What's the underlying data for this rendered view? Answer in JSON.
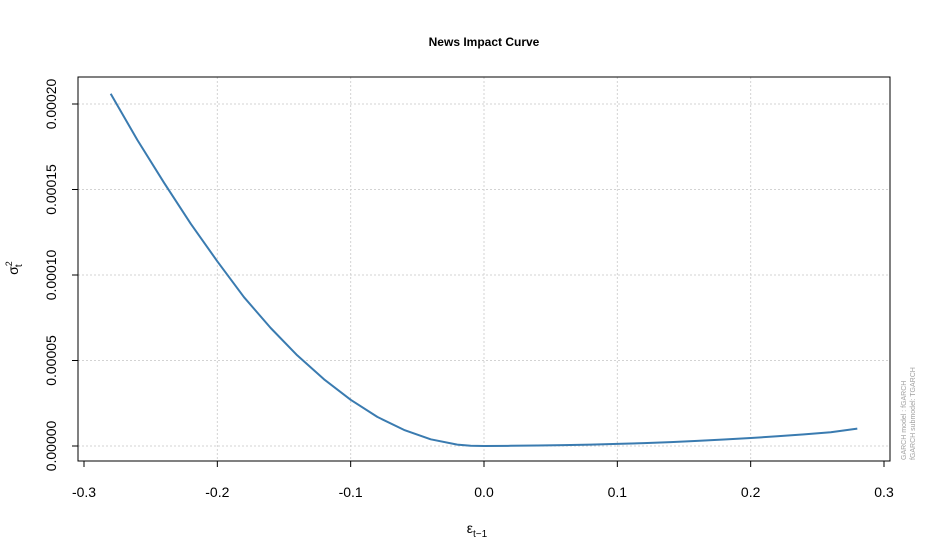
{
  "chart_data": {
    "type": "line",
    "title": "News Impact Curve",
    "xlabel": {
      "base": "ε",
      "sub": "t−1"
    },
    "ylabel": {
      "base": "σ",
      "sup": "2",
      "sub": "t"
    },
    "xlim": [
      -0.3,
      0.3
    ],
    "ylim": [
      0.0,
      0.0002
    ],
    "x_ticks": [
      -0.3,
      -0.2,
      -0.1,
      0.0,
      0.1,
      0.2,
      0.3
    ],
    "x_tick_labels": [
      "-0.3",
      "-0.2",
      "-0.1",
      "0.0",
      "0.1",
      "0.2",
      "0.3"
    ],
    "y_ticks": [
      0.0,
      5e-05,
      0.0001,
      0.00015,
      0.0002
    ],
    "y_tick_labels": [
      "0.00000",
      "0.00005",
      "0.00010",
      "0.00015",
      "0.00020"
    ],
    "grid": true,
    "series": [
      {
        "color": "#3a7bb0",
        "x": [
          -0.28,
          -0.26,
          -0.24,
          -0.22,
          -0.2,
          -0.18,
          -0.16,
          -0.14,
          -0.12,
          -0.1,
          -0.08,
          -0.06,
          -0.04,
          -0.02,
          -0.01,
          0.0,
          0.02,
          0.04,
          0.06,
          0.08,
          0.1,
          0.12,
          0.14,
          0.16,
          0.18,
          0.2,
          0.22,
          0.24,
          0.26,
          0.28
        ],
        "y": [
          0.000206,
          0.000179,
          0.000154,
          0.00013,
          0.000108,
          8.7e-05,
          6.9e-05,
          5.3e-05,
          3.9e-05,
          2.7e-05,
          1.7e-05,
          9.4e-06,
          3.9e-06,
          8e-07,
          2e-07,
          0.0,
          1e-07,
          3e-07,
          5e-07,
          8e-07,
          1.2e-06,
          1.7e-06,
          2.3e-06,
          3e-06,
          3.8e-06,
          4.7e-06,
          5.7e-06,
          6.8e-06,
          8e-06,
          1.02e-05
        ]
      }
    ]
  },
  "watermark": {
    "line1": "GARCH model : fGARCH",
    "line2": "fGARCH submodel: TGARCH"
  }
}
